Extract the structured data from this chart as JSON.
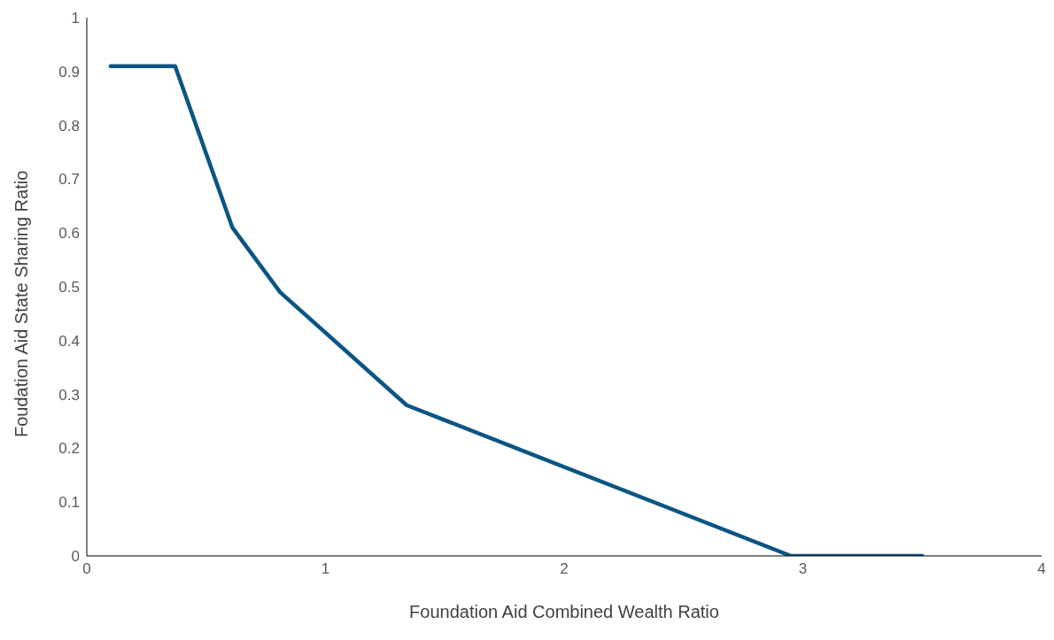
{
  "chart_data": {
    "type": "line",
    "xlabel": "Foundation Aid Combined Wealth Ratio",
    "ylabel": "Foudation Aid State Sharing Ratio",
    "x": [
      0.1,
      0.37,
      0.61,
      0.81,
      1.34,
      2.95,
      3.5
    ],
    "series": [
      {
        "color": "#0b5583",
        "values": [
          0.91,
          0.91,
          0.61,
          0.49,
          0.28,
          0,
          0
        ]
      }
    ],
    "xlim": [
      0,
      4
    ],
    "xticks": [
      0,
      1,
      2,
      3,
      4
    ],
    "ylim": [
      0,
      1
    ],
    "yticks": [
      0,
      0.1,
      0.2,
      0.3,
      0.4,
      0.5,
      0.6,
      0.7,
      0.8,
      0.9,
      1
    ],
    "grid": false,
    "legend": false,
    "marker": "none",
    "line_style": "solid"
  }
}
